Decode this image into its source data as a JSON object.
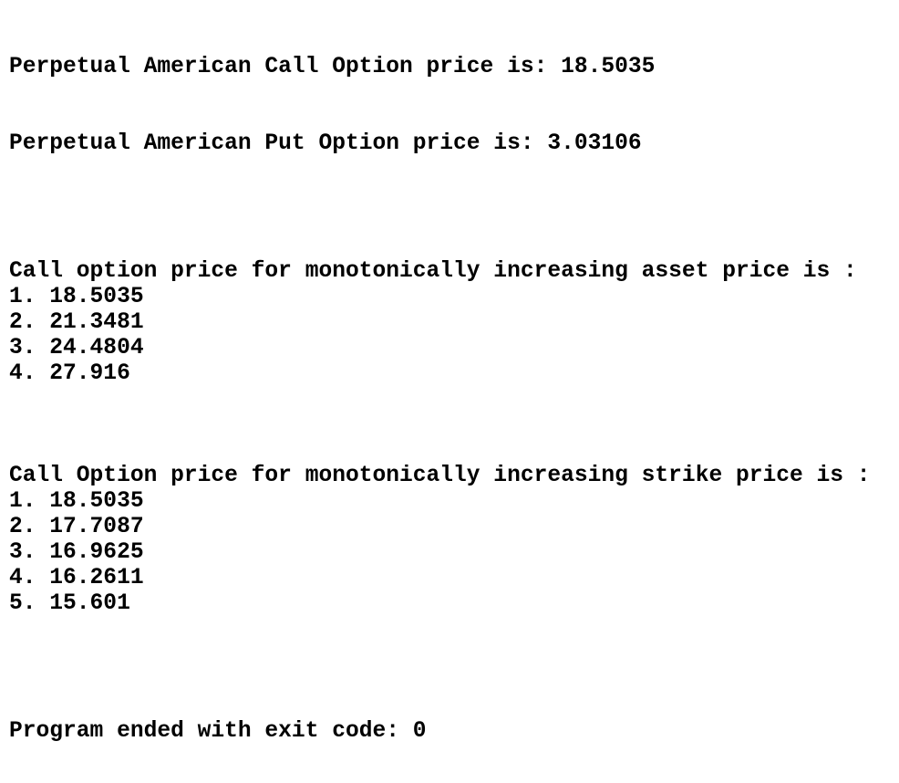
{
  "header": {
    "call_line": "Perpetual American Call Option price is: 18.5035",
    "put_line": "Perpetual American Put Option price is: 3.03106"
  },
  "sections": [
    {
      "heading": "Call option price for monotonically increasing asset price is :",
      "items": [
        "1. 18.5035",
        "2. 21.3481",
        "3. 24.4804",
        "4. 27.916"
      ]
    },
    {
      "heading": "Call Option price for monotonically increasing strike price is :",
      "items": [
        "1. 18.5035",
        "2. 17.7087",
        "3. 16.9625",
        "4. 16.2611",
        "5. 15.601"
      ]
    }
  ],
  "footer": "Program ended with exit code: 0"
}
